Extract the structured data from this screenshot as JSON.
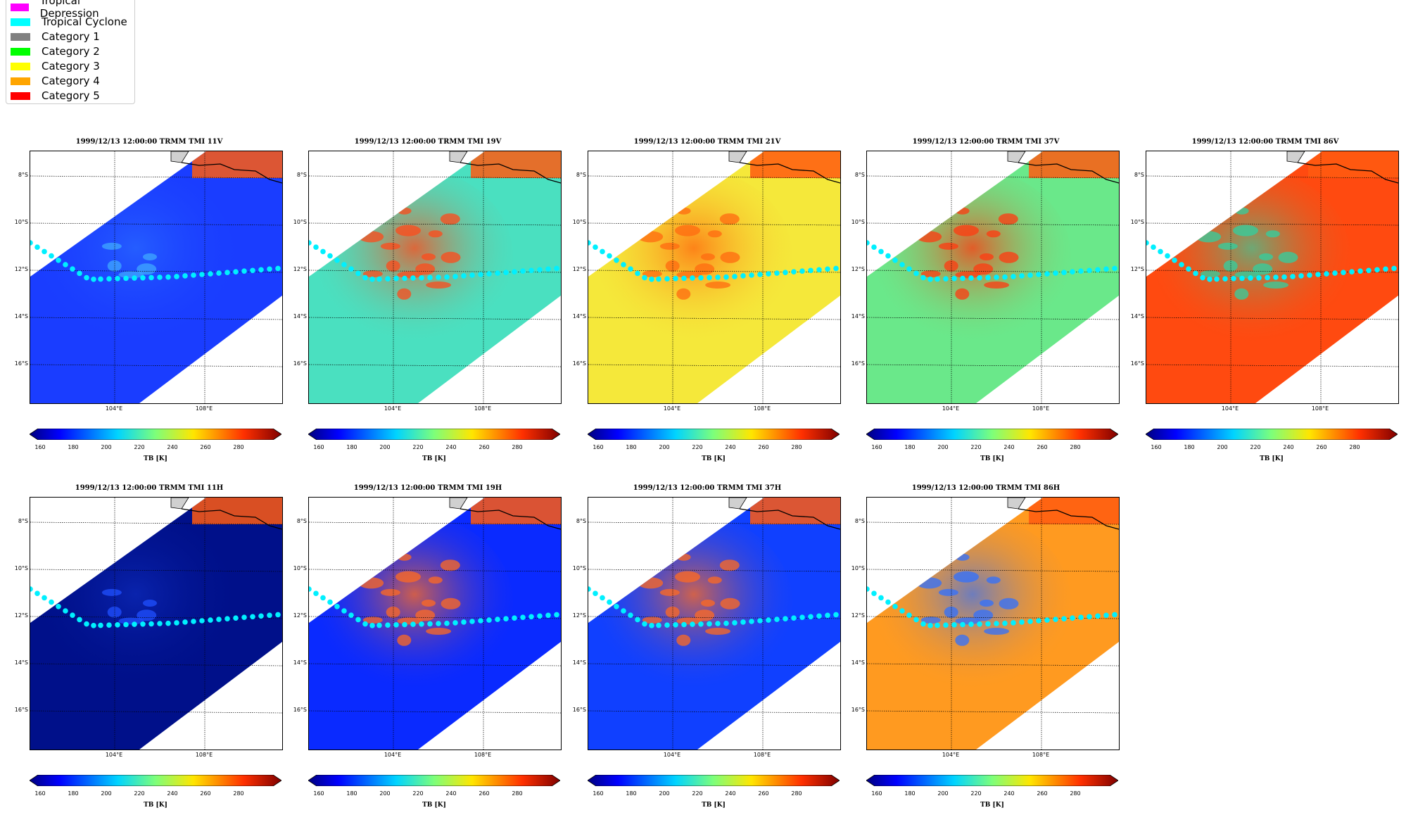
{
  "legend": {
    "items": [
      {
        "label": "Tropical Depression",
        "color": "#ff00ff"
      },
      {
        "label": "Tropical Cyclone",
        "color": "#00ffff"
      },
      {
        "label": "Category 1",
        "color": "#808080"
      },
      {
        "label": "Category 2",
        "color": "#00ff00"
      },
      {
        "label": "Category 3",
        "color": "#ffff00"
      },
      {
        "label": "Category 4",
        "color": "#ffa500"
      },
      {
        "label": "Category 5",
        "color": "#ff0000"
      }
    ]
  },
  "lat_labels": [
    "8°S",
    "10°S",
    "12°S",
    "14°S",
    "16°S"
  ],
  "lon_labels": [
    "104°E",
    "108°E"
  ],
  "colorbar": {
    "ticks": [
      "160",
      "180",
      "200",
      "220",
      "240",
      "260",
      "280"
    ],
    "label": "TB [K]"
  },
  "panels": [
    {
      "title": "1999/12/13 12:00:00  TRMM TMI 11V",
      "base": "#1a3dff",
      "storm": "#3fa8ff",
      "intensity": 0.3
    },
    {
      "title": "1999/12/13 12:00:00  TRMM TMI 19V",
      "base": "#4ae0c0",
      "storm": "#ff4a1a",
      "intensity": 0.8
    },
    {
      "title": "1999/12/13 12:00:00  TRMM TMI 21V",
      "base": "#f5e83a",
      "storm": "#ff6a10",
      "intensity": 0.8
    },
    {
      "title": "1999/12/13 12:00:00  TRMM TMI 37V",
      "base": "#6ae88a",
      "storm": "#ff3a10",
      "intensity": 0.8
    },
    {
      "title": "1999/12/13 12:00:00  TRMM TMI 86V",
      "base": "#ff4a10",
      "storm": "#30d0a0",
      "intensity": 0.7
    },
    {
      "title": "1999/12/13 12:00:00  TRMM TMI 11H",
      "base": "#00108a",
      "storm": "#2050ff",
      "intensity": 0.3
    },
    {
      "title": "1999/12/13 12:00:00  TRMM TMI 19H",
      "base": "#0a2aff",
      "storm": "#ff6a20",
      "intensity": 0.8
    },
    {
      "title": "1999/12/13 12:00:00  TRMM TMI 37H",
      "base": "#1040ff",
      "storm": "#ff6a20",
      "intensity": 0.8
    },
    {
      "title": "1999/12/13 12:00:00  TRMM TMI 86H",
      "base": "#ff9a20",
      "storm": "#3070ff",
      "intensity": 0.7
    }
  ]
}
